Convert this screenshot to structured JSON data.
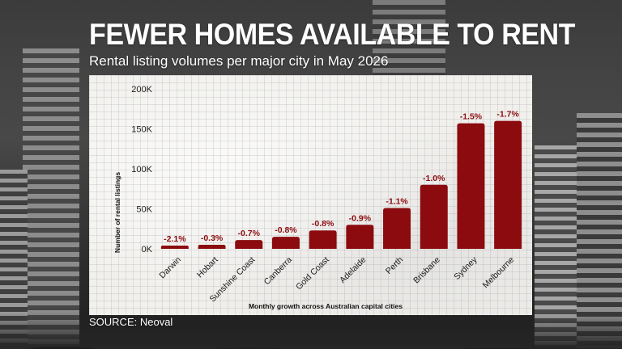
{
  "header": {
    "title": "FEWER HOMES AVAILABLE TO RENT",
    "subtitle": "Rental listing volumes per major city in May 2026"
  },
  "footer": {
    "source": "SOURCE: Neoval"
  },
  "colors": {
    "bar": "#8b0b0e",
    "label": "#8b0b0e"
  },
  "chart_data": {
    "type": "bar",
    "title": "",
    "xlabel": "Monthly growth across Australian capital cities",
    "ylabel": "Number of rental listings",
    "ylim": [
      0,
      200000
    ],
    "yticks": [
      {
        "value": 0,
        "label": "0K"
      },
      {
        "value": 50000,
        "label": "50K"
      },
      {
        "value": 100000,
        "label": "100K"
      },
      {
        "value": 150000,
        "label": "150K"
      },
      {
        "value": 200000,
        "label": "200K"
      }
    ],
    "grid": true,
    "categories": [
      "Darwin",
      "Hobart",
      "Sunshine Coast",
      "Canberra",
      "Gold Coast",
      "Adelaide",
      "Perth",
      "Brisbane",
      "Sydney",
      "Melbourne"
    ],
    "values": [
      4000,
      5000,
      11000,
      15000,
      23000,
      30000,
      51000,
      80000,
      157000,
      160000
    ],
    "data_labels": [
      "-2.1%",
      "-0.3%",
      "-0.7%",
      "-0.8%",
      "-0.8%",
      "-0.9%",
      "-1.1%",
      "-1.0%",
      "-1.5%",
      "-1.7%"
    ]
  }
}
